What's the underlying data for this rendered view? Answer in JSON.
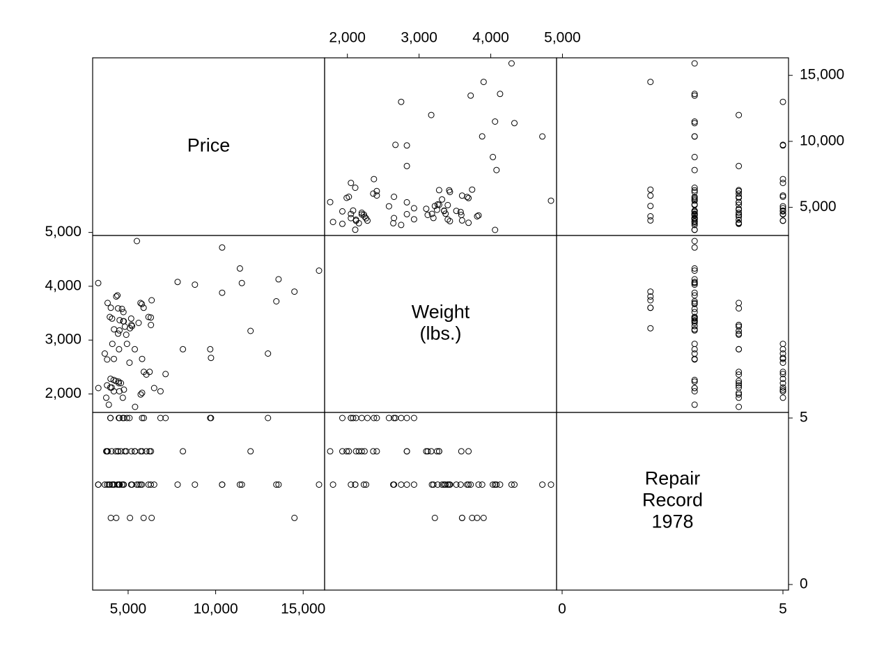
{
  "chart_data": {
    "type": "scatter",
    "variables": [
      {
        "key": "price",
        "label": [
          "Price"
        ],
        "range": [
          3291,
          15906
        ],
        "ticks": [
          5000,
          10000,
          15000
        ],
        "tick_labels": [
          "5,000",
          "10,000",
          "15,000"
        ]
      },
      {
        "key": "weight",
        "label": [
          "Weight",
          "(lbs.)"
        ],
        "range": [
          1760,
          4840
        ],
        "ticks": [
          2000,
          3000,
          4000,
          5000
        ],
        "tick_labels": [
          "2,000",
          "3,000",
          "4,000",
          "5,000"
        ]
      },
      {
        "key": "rep78",
        "label": [
          "Repair",
          "Record",
          "1978"
        ],
        "range": [
          0,
          5
        ],
        "ticks": [
          0,
          5
        ],
        "tick_labels": [
          "0",
          "5"
        ]
      }
    ],
    "points": [
      [
        4099,
        2930,
        3
      ],
      [
        4749,
        3350,
        3
      ],
      [
        3799,
        2640,
        3
      ],
      [
        4816,
        3250,
        4
      ],
      [
        7827,
        4080,
        3
      ],
      [
        5788,
        3670,
        3
      ],
      [
        4453,
        2230,
        3
      ],
      [
        5189,
        3280,
        4
      ],
      [
        10372,
        3880,
        3
      ],
      [
        4082,
        3400,
        3
      ],
      [
        11385,
        4330,
        3
      ],
      [
        14500,
        3900,
        2
      ],
      [
        15906,
        4290,
        3
      ],
      [
        3299,
        2110,
        3
      ],
      [
        5705,
        3690,
        3
      ],
      [
        4504,
        3180,
        3
      ],
      [
        5104,
        3220,
        2
      ],
      [
        3667,
        2750,
        3
      ],
      [
        3955,
        3430,
        3
      ],
      [
        3984,
        2120,
        5
      ],
      [
        4010,
        3600,
        2
      ],
      [
        5886,
        3600,
        2
      ],
      [
        6342,
        3740,
        2
      ],
      [
        4389,
        3830,
        3
      ],
      [
        4187,
        2650,
        3
      ],
      [
        11497,
        4060,
        3
      ],
      [
        13594,
        4130,
        3
      ],
      [
        13466,
        3720,
        3
      ],
      [
        3829,
        3690,
        4
      ],
      [
        5379,
        2830,
        4
      ],
      [
        6165,
        3430,
        3
      ],
      [
        4516,
        3370,
        3
      ],
      [
        6303,
        3280,
        4
      ],
      [
        3291,
        4060,
        3
      ],
      [
        8814,
        4030,
        3
      ],
      [
        5172,
        3400,
        3
      ],
      [
        4733,
        3520,
        3
      ],
      [
        4890,
        3100,
        4
      ],
      [
        4181,
        2050,
        3
      ],
      [
        4195,
        3200,
        3
      ],
      [
        10371,
        4720,
        3
      ],
      [
        4647,
        3580,
        3
      ],
      [
        4425,
        3590,
        4
      ],
      [
        4482,
        2830,
        3
      ],
      [
        6486,
        2110,
        3
      ],
      [
        4060,
        2120,
        4
      ],
      [
        5798,
        2650,
        5
      ],
      [
        4934,
        2930,
        5
      ],
      [
        5222,
        3260,
        3
      ],
      [
        4723,
        3350,
        3
      ],
      [
        4424,
        3120,
        4
      ],
      [
        4172,
        2260,
        3
      ],
      [
        9690,
        2830,
        5
      ],
      [
        6295,
        3420,
        3
      ],
      [
        9735,
        2670,
        5
      ],
      [
        6229,
        2410,
        4
      ],
      [
        4589,
        2200,
        4
      ],
      [
        5079,
        2580,
        5
      ],
      [
        8129,
        2830,
        4
      ],
      [
        4296,
        2240,
        4
      ],
      [
        5799,
        2020,
        4
      ],
      [
        4499,
        2050,
        5
      ],
      [
        3995,
        2280,
        5
      ],
      [
        12990,
        2750,
        5
      ],
      [
        3895,
        1800,
        3
      ],
      [
        3798,
        2160,
        4
      ],
      [
        5899,
        2410,
        5
      ],
      [
        3748,
        1930,
        4
      ],
      [
        5719,
        1990,
        4
      ],
      [
        7140,
        2370,
        5
      ],
      [
        5397,
        1760,
        4
      ],
      [
        4697,
        1930,
        5
      ],
      [
        6850,
        2050,
        5
      ],
      [
        11995,
        3170,
        4
      ],
      [
        6040,
        2360,
        4
      ],
      [
        4470,
        2200,
        5
      ],
      [
        4760,
        2080,
        5
      ],
      [
        5600,
        3320,
        3
      ],
      [
        5500,
        4840,
        3
      ],
      [
        4320,
        3810,
        2
      ]
    ]
  }
}
